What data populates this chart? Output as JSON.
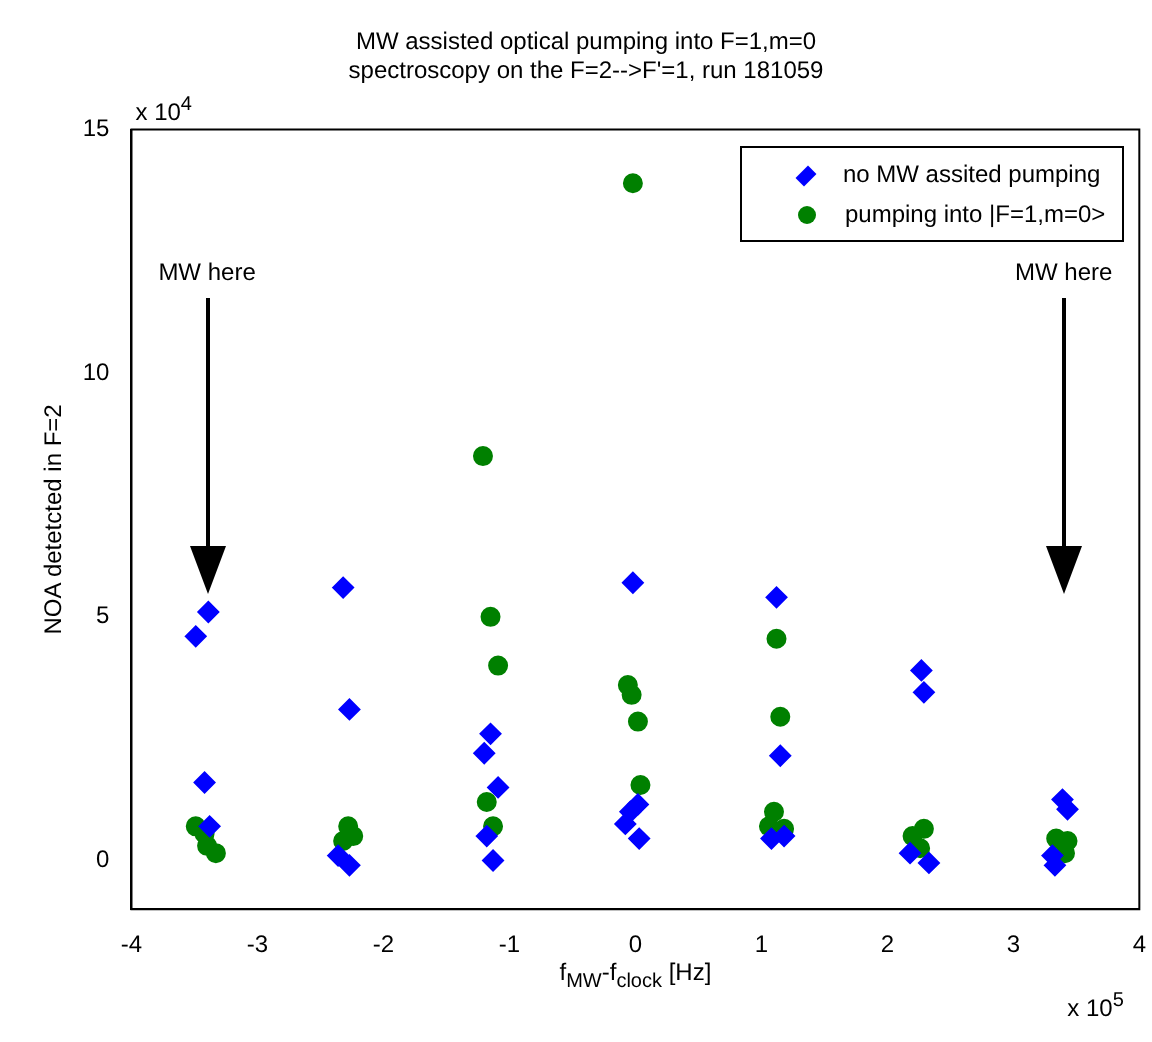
{
  "chart_data": {
    "type": "scatter",
    "title": "MW assisted optical pumping into F=1,m=0",
    "subtitle": "spectroscopy on the F=2-->F'=1, run 181059",
    "xlabel": "f$_{MW}$-f$_{clock}$ [Hz]",
    "ylabel": "NOA detetcted in F=2",
    "xlim": [
      -4,
      4
    ],
    "xticks": [
      -4,
      -3,
      -2,
      -1,
      0,
      1,
      2,
      3,
      4
    ],
    "ylim": [
      -1,
      15
    ],
    "yticks": [
      0,
      5,
      10,
      15
    ],
    "grid": false,
    "legend": "top right",
    "annotations": [
      "x 10$^{4}$",
      "x 10$^{5}$",
      "MW here",
      "MW here"
    ],
    "series": [
      {
        "name": "no MW assited pumping",
        "color": "#0000ff",
        "marker": "diamond",
        "x": [
          -3.39,
          -3.49,
          -3.42,
          -3.38,
          -2.32,
          -2.27,
          -2.36,
          -2.27,
          -1.15,
          -1.2,
          -1.09,
          -1.18,
          -1.13,
          -0.02,
          0.02,
          -0.04,
          -0.08,
          0.03,
          1.12,
          1.15,
          1.08,
          1.18,
          2.27,
          2.29,
          2.18,
          2.33,
          3.39,
          3.43,
          3.33,
          3.31
        ],
        "values": [
          5.1,
          4.6,
          1.6,
          0.7,
          5.6,
          3.1,
          0.1,
          -0.1,
          2.6,
          2.2,
          1.5,
          0.5,
          0,
          5.7,
          1.15,
          1,
          0.75,
          0.45,
          5.4,
          2.15,
          0.45,
          0.5,
          3.9,
          3.45,
          0.15,
          -0.05,
          1.25,
          1.05,
          -0.1,
          0.1
        ]
      },
      {
        "name": "pumping into |F=1,m=0>",
        "color": "#008000",
        "marker": "circle",
        "x": [
          -3.49,
          -3.4,
          -3.42,
          -3.33,
          -2.28,
          -2.32,
          -2.24,
          -1.21,
          -1.15,
          -1.09,
          -1.18,
          -1.13,
          -0.02,
          -0.06,
          -0.03,
          0.02,
          0.04,
          1.12,
          1.15,
          1.1,
          1.06,
          1.18,
          2.2,
          2.29,
          2.26,
          3.34,
          3.43,
          3.41
        ],
        "values": [
          0.7,
          0.3,
          0.55,
          0.15,
          0.7,
          0.4,
          0.5,
          8.3,
          5,
          4,
          1.2,
          0.7,
          13.9,
          3.6,
          3.4,
          2.85,
          1.55,
          4.55,
          2.95,
          1,
          0.7,
          0.65,
          0.5,
          0.65,
          0.25,
          0.45,
          0.4,
          0.15
        ]
      }
    ]
  }
}
